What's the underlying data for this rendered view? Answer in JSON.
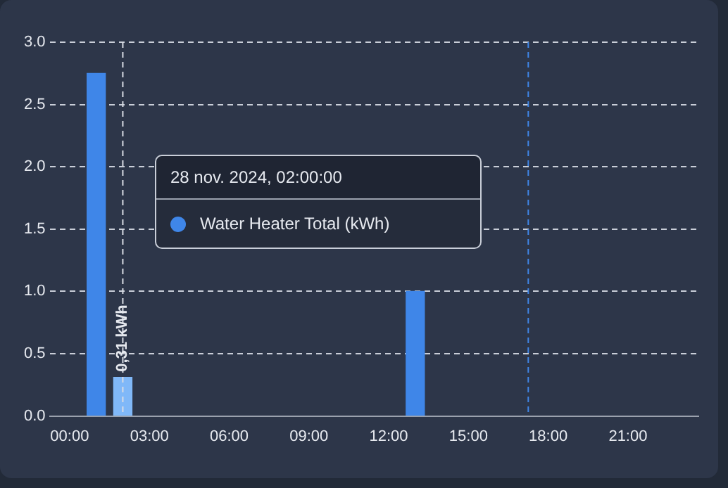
{
  "chart_data": {
    "type": "bar",
    "x": [
      1,
      2,
      13
    ],
    "series": [
      {
        "name": "Water Heater Total (kWh)",
        "color": "#3f86e8",
        "colors": [
          "#3f86e8",
          "#80b8f8",
          "#3f86e8"
        ],
        "values": [
          2.75,
          0.31,
          1.0
        ],
        "value_labels": [
          null,
          "0,31 kWh",
          null
        ]
      }
    ],
    "xlim": [
      -0.75,
      23.65
    ],
    "xticks": [
      {
        "value": 0,
        "label": "00:00"
      },
      {
        "value": 3,
        "label": "03:00"
      },
      {
        "value": 6,
        "label": "06:00"
      },
      {
        "value": 9,
        "label": "09:00"
      },
      {
        "value": 12,
        "label": "12:00"
      },
      {
        "value": 15,
        "label": "15:00"
      },
      {
        "value": 18,
        "label": "18:00"
      },
      {
        "value": 21,
        "label": "21:00"
      }
    ],
    "ylim": [
      0,
      3
    ],
    "yticks": [
      {
        "value": 0,
        "label": "0.0"
      },
      0.5,
      {
        "value": 1,
        "label": "1.0"
      },
      1.5,
      {
        "value": 2,
        "label": "2.0"
      },
      2.5,
      {
        "value": 3,
        "label": "3.0"
      }
    ],
    "grid": "y",
    "ref_lines": [
      {
        "axis": "x",
        "value": 2,
        "color": "#d8dce4",
        "line_style": "dashed"
      },
      {
        "axis": "x",
        "value": 17.25,
        "color": "#3f86e8",
        "line_style": "dashed"
      }
    ],
    "annotations": [
      "28 nov. 2024, 02:00:00"
    ]
  }
}
